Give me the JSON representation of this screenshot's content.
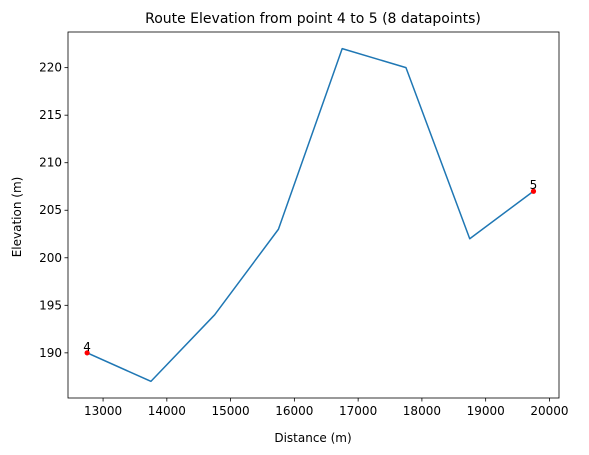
{
  "chart_data": {
    "type": "line",
    "title": "Route Elevation from point 4 to 5 (8 datapoints)",
    "xlabel": "Distance (m)",
    "ylabel": "Elevation (m)",
    "xlim": [
      12450,
      20150
    ],
    "ylim": [
      185.25,
      223.75
    ],
    "xticks": [
      13000,
      14000,
      15000,
      16000,
      17000,
      18000,
      19000,
      20000
    ],
    "yticks": [
      190,
      195,
      200,
      205,
      210,
      215,
      220
    ],
    "grid": false,
    "line_color": "#1f77b4",
    "marker_color": "#ff0000",
    "series": [
      {
        "x": [
          12750,
          13750,
          14750,
          15750,
          16750,
          17750,
          18750,
          19750
        ],
        "y": [
          190,
          187,
          194,
          203,
          222,
          220,
          202,
          207
        ]
      }
    ],
    "markers": [
      {
        "label": "4",
        "x": 12750,
        "y": 190
      },
      {
        "label": "5",
        "x": 19750,
        "y": 207
      }
    ]
  }
}
